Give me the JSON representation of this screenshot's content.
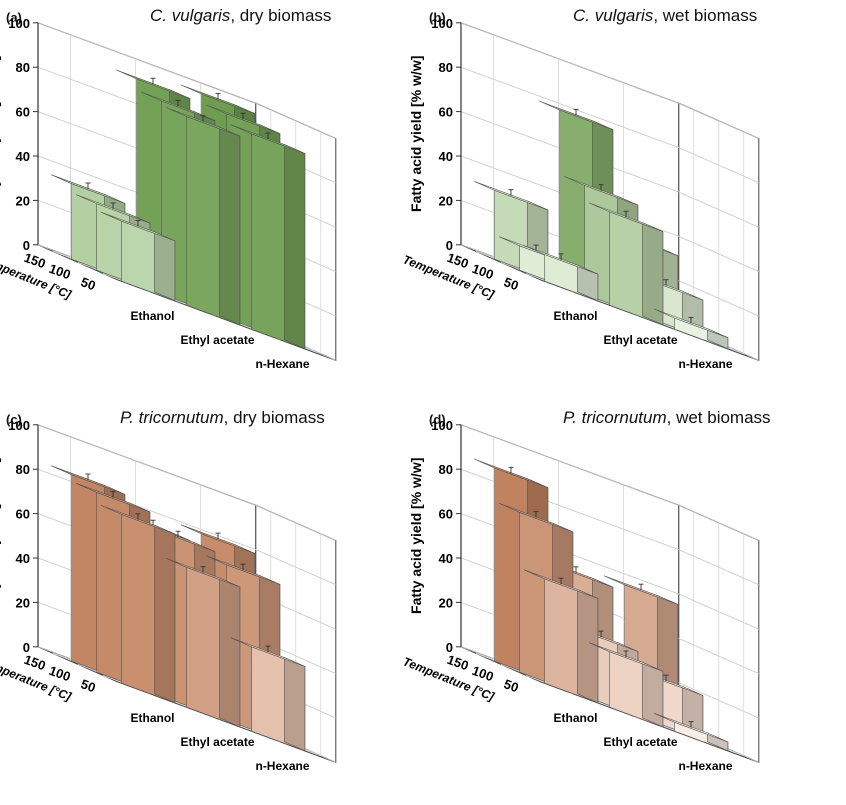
{
  "panels": [
    {
      "label": "(a)",
      "title_species": "C. vulgaris",
      "title_suffix": ", dry biomass",
      "colors": {
        "light": "#d9ecd0",
        "dark": "#6a9a4a"
      },
      "chart_data": {
        "type": "bar3d",
        "ylabel": "Fatty acid yield [% w/w]",
        "zlabel": "Temperature [°C]",
        "ylim": [
          0,
          100
        ],
        "yticks": [
          0,
          20,
          40,
          60,
          80,
          100
        ],
        "categories": [
          "Ethanol",
          "Ethyl acetate",
          "n-Hexane"
        ],
        "temperatures": [
          "150",
          "100",
          "50"
        ],
        "values": [
          [
            34,
            30,
            27
          ],
          [
            92,
            87,
            85
          ],
          [
            96,
            92,
            88
          ]
        ]
      }
    },
    {
      "label": "(b)",
      "title_species": "C. vulgaris",
      "title_suffix": ", wet biomass",
      "colors": {
        "light": "#eef7e8",
        "dark": "#6a9a4a"
      },
      "chart_data": {
        "type": "bar3d",
        "ylabel": "Fatty acid yield [% w/w]",
        "zlabel": "Temperature [°C]",
        "ylim": [
          0,
          100
        ],
        "yticks": [
          0,
          20,
          40,
          60,
          80,
          100
        ],
        "categories": [
          "Ethanol",
          "Ethyl acetate",
          "n-Hexane"
        ],
        "temperatures": [
          "150",
          "100",
          "50"
        ],
        "values": [
          [
            31,
            11,
            12
          ],
          [
            78,
            49,
            42
          ],
          [
            32,
            17,
            5
          ]
        ]
      }
    },
    {
      "label": "(c)",
      "title_species": "P. tricornutum",
      "title_suffix": ", dry biomass",
      "colors": {
        "light": "#fdf2ea",
        "dark": "#b8714a"
      },
      "chart_data": {
        "type": "bar3d",
        "ylabel": "Fatty acid yield [% w/w]",
        "zlabel": "Temperature [°C]",
        "ylim": [
          0,
          100
        ],
        "yticks": [
          0,
          20,
          40,
          60,
          80,
          100
        ],
        "categories": [
          "Ethanol",
          "Ethyl acetate",
          "n-Hexane"
        ],
        "temperatures": [
          "150",
          "100",
          "50"
        ],
        "values": [
          [
            84,
            81,
            76
          ],
          [
            74,
            74,
            63
          ],
          [
            79,
            70,
            38
          ]
        ]
      }
    },
    {
      "label": "(d)",
      "title_species": "P. tricornutum",
      "title_suffix": ", wet biomass",
      "colors": {
        "light": "#fdf2ea",
        "dark": "#b8714a"
      },
      "chart_data": {
        "type": "bar3d",
        "ylabel": "Fatty acid yield [% w/w]",
        "zlabel": "Temperature [°C]",
        "ylim": [
          0,
          100
        ],
        "yticks": [
          0,
          20,
          40,
          60,
          80,
          100
        ],
        "categories": [
          "Ethanol",
          "Ethyl acetate",
          "n-Hexane"
        ],
        "temperatures": [
          "150",
          "100",
          "50"
        ],
        "values": [
          [
            87,
            72,
            47
          ],
          [
            53,
            29,
            25
          ],
          [
            56,
            20,
            4
          ]
        ]
      }
    }
  ]
}
